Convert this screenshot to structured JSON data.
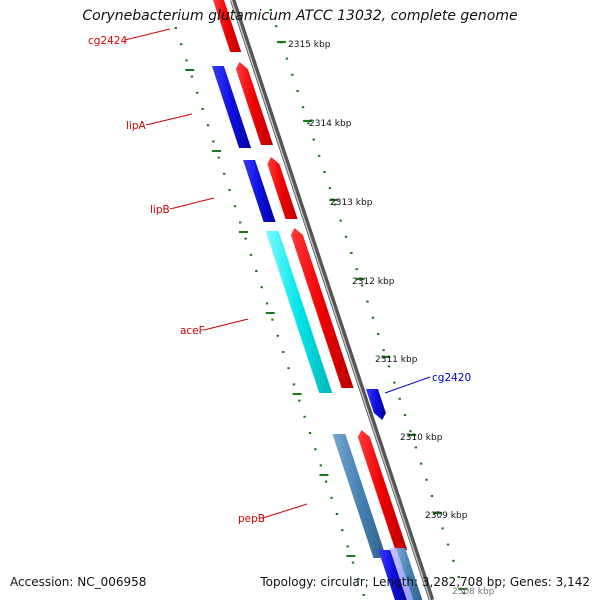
{
  "header": {
    "title": "Corynebacterium glutamicum ATCC 13032, complete genome"
  },
  "footer": {
    "accession": "Accession: NC_006958",
    "topology": "Topology: circular; Length: 3,282,708 bp; Genes: 3,142"
  },
  "scale": {
    "ticks": [
      "2315 kbp",
      "2314 kbp",
      "2313 kbp",
      "2312 kbp",
      "2311 kbp",
      "2310 kbp",
      "2309 kbp",
      "2308 kbp"
    ]
  },
  "genes": [
    {
      "name": "cg2424",
      "color": "#d00000"
    },
    {
      "name": "lipA",
      "color": "#d00000"
    },
    {
      "name": "lipB",
      "color": "#d00000"
    },
    {
      "name": "aceF",
      "color": "#d00000"
    },
    {
      "name": "cg2420",
      "color": "#0000cc"
    },
    {
      "name": "pepB",
      "color": "#d00000"
    }
  ],
  "colors": {
    "cds_forward": "#ee0000",
    "orf_blue": "#1010dd",
    "cyan_feature": "#00e5ea",
    "steel_feature": "#4682b4",
    "backbone": "#777777",
    "ticks": "#1a7a1a"
  }
}
